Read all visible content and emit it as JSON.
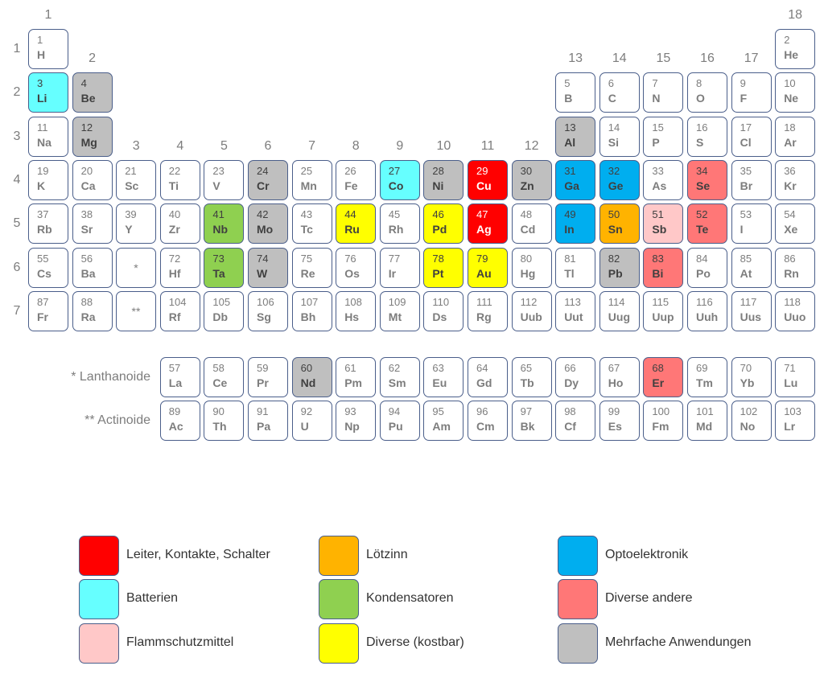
{
  "groups": [
    "1",
    "2",
    "3",
    "4",
    "5",
    "6",
    "7",
    "8",
    "9",
    "10",
    "11",
    "12",
    "13",
    "14",
    "15",
    "16",
    "17",
    "18"
  ],
  "periods": [
    "1",
    "2",
    "3",
    "4",
    "5",
    "6",
    "7"
  ],
  "placeholders": {
    "lanthanoid_mark": "*",
    "actinoid_mark": "**"
  },
  "series_labels": {
    "lanthanoids": "* Lanthanoide",
    "actinoids": "** Actinoide"
  },
  "colors": {
    "leiter": "#ff0000",
    "batterien": "#66ffff",
    "flamm": "#ffc8c8",
    "loetzinn": "#ffb300",
    "kondensatoren": "#8fd050",
    "kostbar": "#ffff00",
    "opto": "#00aeef",
    "diverse": "#ff7777",
    "mehrfach": "#bfbfbf"
  },
  "elements": [
    {
      "n": "1",
      "s": "H",
      "g": 1,
      "p": 1
    },
    {
      "n": "2",
      "s": "He",
      "g": 18,
      "p": 1
    },
    {
      "n": "3",
      "s": "Li",
      "g": 1,
      "p": 2,
      "c": "batterien"
    },
    {
      "n": "4",
      "s": "Be",
      "g": 2,
      "p": 2,
      "c": "mehrfach"
    },
    {
      "n": "5",
      "s": "B",
      "g": 13,
      "p": 2
    },
    {
      "n": "6",
      "s": "C",
      "g": 14,
      "p": 2
    },
    {
      "n": "7",
      "s": "N",
      "g": 15,
      "p": 2
    },
    {
      "n": "8",
      "s": "O",
      "g": 16,
      "p": 2
    },
    {
      "n": "9",
      "s": "F",
      "g": 17,
      "p": 2
    },
    {
      "n": "10",
      "s": "Ne",
      "g": 18,
      "p": 2
    },
    {
      "n": "11",
      "s": "Na",
      "g": 1,
      "p": 3
    },
    {
      "n": "12",
      "s": "Mg",
      "g": 2,
      "p": 3,
      "c": "mehrfach"
    },
    {
      "n": "13",
      "s": "Al",
      "g": 13,
      "p": 3,
      "c": "mehrfach"
    },
    {
      "n": "14",
      "s": "Si",
      "g": 14,
      "p": 3
    },
    {
      "n": "15",
      "s": "P",
      "g": 15,
      "p": 3
    },
    {
      "n": "16",
      "s": "S",
      "g": 16,
      "p": 3
    },
    {
      "n": "17",
      "s": "Cl",
      "g": 17,
      "p": 3
    },
    {
      "n": "18",
      "s": "Ar",
      "g": 18,
      "p": 3
    },
    {
      "n": "19",
      "s": "K",
      "g": 1,
      "p": 4
    },
    {
      "n": "20",
      "s": "Ca",
      "g": 2,
      "p": 4
    },
    {
      "n": "21",
      "s": "Sc",
      "g": 3,
      "p": 4
    },
    {
      "n": "22",
      "s": "Ti",
      "g": 4,
      "p": 4
    },
    {
      "n": "23",
      "s": "V",
      "g": 5,
      "p": 4
    },
    {
      "n": "24",
      "s": "Cr",
      "g": 6,
      "p": 4,
      "c": "mehrfach"
    },
    {
      "n": "25",
      "s": "Mn",
      "g": 7,
      "p": 4
    },
    {
      "n": "26",
      "s": "Fe",
      "g": 8,
      "p": 4
    },
    {
      "n": "27",
      "s": "Co",
      "g": 9,
      "p": 4,
      "c": "batterien"
    },
    {
      "n": "28",
      "s": "Ni",
      "g": 10,
      "p": 4,
      "c": "mehrfach"
    },
    {
      "n": "29",
      "s": "Cu",
      "g": 11,
      "p": 4,
      "c": "leiter"
    },
    {
      "n": "30",
      "s": "Zn",
      "g": 12,
      "p": 4,
      "c": "mehrfach"
    },
    {
      "n": "31",
      "s": "Ga",
      "g": 13,
      "p": 4,
      "c": "opto"
    },
    {
      "n": "32",
      "s": "Ge",
      "g": 14,
      "p": 4,
      "c": "opto"
    },
    {
      "n": "33",
      "s": "As",
      "g": 15,
      "p": 4
    },
    {
      "n": "34",
      "s": "Se",
      "g": 16,
      "p": 4,
      "c": "diverse"
    },
    {
      "n": "35",
      "s": "Br",
      "g": 17,
      "p": 4
    },
    {
      "n": "36",
      "s": "Kr",
      "g": 18,
      "p": 4
    },
    {
      "n": "37",
      "s": "Rb",
      "g": 1,
      "p": 5
    },
    {
      "n": "38",
      "s": "Sr",
      "g": 2,
      "p": 5
    },
    {
      "n": "39",
      "s": "Y",
      "g": 3,
      "p": 5
    },
    {
      "n": "40",
      "s": "Zr",
      "g": 4,
      "p": 5
    },
    {
      "n": "41",
      "s": "Nb",
      "g": 5,
      "p": 5,
      "c": "kondensatoren"
    },
    {
      "n": "42",
      "s": "Mo",
      "g": 6,
      "p": 5,
      "c": "mehrfach"
    },
    {
      "n": "43",
      "s": "Tc",
      "g": 7,
      "p": 5
    },
    {
      "n": "44",
      "s": "Ru",
      "g": 8,
      "p": 5,
      "c": "kostbar"
    },
    {
      "n": "45",
      "s": "Rh",
      "g": 9,
      "p": 5
    },
    {
      "n": "46",
      "s": "Pd",
      "g": 10,
      "p": 5,
      "c": "kostbar"
    },
    {
      "n": "47",
      "s": "Ag",
      "g": 11,
      "p": 5,
      "c": "leiter"
    },
    {
      "n": "48",
      "s": "Cd",
      "g": 12,
      "p": 5
    },
    {
      "n": "49",
      "s": "In",
      "g": 13,
      "p": 5,
      "c": "opto"
    },
    {
      "n": "50",
      "s": "Sn",
      "g": 14,
      "p": 5,
      "c": "loetzinn"
    },
    {
      "n": "51",
      "s": "Sb",
      "g": 15,
      "p": 5,
      "c": "flamm"
    },
    {
      "n": "52",
      "s": "Te",
      "g": 16,
      "p": 5,
      "c": "diverse"
    },
    {
      "n": "53",
      "s": "I",
      "g": 17,
      "p": 5
    },
    {
      "n": "54",
      "s": "Xe",
      "g": 18,
      "p": 5
    },
    {
      "n": "55",
      "s": "Cs",
      "g": 1,
      "p": 6
    },
    {
      "n": "56",
      "s": "Ba",
      "g": 2,
      "p": 6
    },
    {
      "n": "72",
      "s": "Hf",
      "g": 4,
      "p": 6
    },
    {
      "n": "73",
      "s": "Ta",
      "g": 5,
      "p": 6,
      "c": "kondensatoren"
    },
    {
      "n": "74",
      "s": "W",
      "g": 6,
      "p": 6,
      "c": "mehrfach"
    },
    {
      "n": "75",
      "s": "Re",
      "g": 7,
      "p": 6
    },
    {
      "n": "76",
      "s": "Os",
      "g": 8,
      "p": 6
    },
    {
      "n": "77",
      "s": "Ir",
      "g": 9,
      "p": 6
    },
    {
      "n": "78",
      "s": "Pt",
      "g": 10,
      "p": 6,
      "c": "kostbar"
    },
    {
      "n": "79",
      "s": "Au",
      "g": 11,
      "p": 6,
      "c": "kostbar"
    },
    {
      "n": "80",
      "s": "Hg",
      "g": 12,
      "p": 6
    },
    {
      "n": "81",
      "s": "Tl",
      "g": 13,
      "p": 6
    },
    {
      "n": "82",
      "s": "Pb",
      "g": 14,
      "p": 6,
      "c": "mehrfach"
    },
    {
      "n": "83",
      "s": "Bi",
      "g": 15,
      "p": 6,
      "c": "diverse"
    },
    {
      "n": "84",
      "s": "Po",
      "g": 16,
      "p": 6
    },
    {
      "n": "85",
      "s": "At",
      "g": 17,
      "p": 6
    },
    {
      "n": "86",
      "s": "Rn",
      "g": 18,
      "p": 6
    },
    {
      "n": "87",
      "s": "Fr",
      "g": 1,
      "p": 7
    },
    {
      "n": "88",
      "s": "Ra",
      "g": 2,
      "p": 7
    },
    {
      "n": "104",
      "s": "Rf",
      "g": 4,
      "p": 7
    },
    {
      "n": "105",
      "s": "Db",
      "g": 5,
      "p": 7
    },
    {
      "n": "106",
      "s": "Sg",
      "g": 6,
      "p": 7
    },
    {
      "n": "107",
      "s": "Bh",
      "g": 7,
      "p": 7
    },
    {
      "n": "108",
      "s": "Hs",
      "g": 8,
      "p": 7
    },
    {
      "n": "109",
      "s": "Mt",
      "g": 9,
      "p": 7
    },
    {
      "n": "110",
      "s": "Ds",
      "g": 10,
      "p": 7
    },
    {
      "n": "111",
      "s": "Rg",
      "g": 11,
      "p": 7
    },
    {
      "n": "112",
      "s": "Uub",
      "g": 12,
      "p": 7
    },
    {
      "n": "113",
      "s": "Uut",
      "g": 13,
      "p": 7
    },
    {
      "n": "114",
      "s": "Uug",
      "g": 14,
      "p": 7
    },
    {
      "n": "115",
      "s": "Uup",
      "g": 15,
      "p": 7
    },
    {
      "n": "116",
      "s": "Uuh",
      "g": 16,
      "p": 7
    },
    {
      "n": "117",
      "s": "Uus",
      "g": 17,
      "p": 7
    },
    {
      "n": "118",
      "s": "Uuo",
      "g": 18,
      "p": 7
    },
    {
      "n": "57",
      "s": "La",
      "g": 4,
      "p": 8
    },
    {
      "n": "58",
      "s": "Ce",
      "g": 5,
      "p": 8
    },
    {
      "n": "59",
      "s": "Pr",
      "g": 6,
      "p": 8
    },
    {
      "n": "60",
      "s": "Nd",
      "g": 7,
      "p": 8,
      "c": "mehrfach"
    },
    {
      "n": "61",
      "s": "Pm",
      "g": 8,
      "p": 8
    },
    {
      "n": "62",
      "s": "Sm",
      "g": 9,
      "p": 8
    },
    {
      "n": "63",
      "s": "Eu",
      "g": 10,
      "p": 8
    },
    {
      "n": "64",
      "s": "Gd",
      "g": 11,
      "p": 8
    },
    {
      "n": "65",
      "s": "Tb",
      "g": 12,
      "p": 8
    },
    {
      "n": "66",
      "s": "Dy",
      "g": 13,
      "p": 8
    },
    {
      "n": "67",
      "s": "Ho",
      "g": 14,
      "p": 8
    },
    {
      "n": "68",
      "s": "Er",
      "g": 15,
      "p": 8,
      "c": "diverse"
    },
    {
      "n": "69",
      "s": "Tm",
      "g": 16,
      "p": 8
    },
    {
      "n": "70",
      "s": "Yb",
      "g": 17,
      "p": 8
    },
    {
      "n": "71",
      "s": "Lu",
      "g": 18,
      "p": 8
    },
    {
      "n": "89",
      "s": "Ac",
      "g": 4,
      "p": 9
    },
    {
      "n": "90",
      "s": "Th",
      "g": 5,
      "p": 9
    },
    {
      "n": "91",
      "s": "Pa",
      "g": 6,
      "p": 9
    },
    {
      "n": "92",
      "s": "U",
      "g": 7,
      "p": 9
    },
    {
      "n": "93",
      "s": "Np",
      "g": 8,
      "p": 9
    },
    {
      "n": "94",
      "s": "Pu",
      "g": 9,
      "p": 9
    },
    {
      "n": "95",
      "s": "Am",
      "g": 10,
      "p": 9
    },
    {
      "n": "96",
      "s": "Cm",
      "g": 11,
      "p": 9
    },
    {
      "n": "97",
      "s": "Bk",
      "g": 12,
      "p": 9
    },
    {
      "n": "98",
      "s": "Cf",
      "g": 13,
      "p": 9
    },
    {
      "n": "99",
      "s": "Es",
      "g": 14,
      "p": 9
    },
    {
      "n": "100",
      "s": "Fm",
      "g": 15,
      "p": 9
    },
    {
      "n": "101",
      "s": "Md",
      "g": 16,
      "p": 9
    },
    {
      "n": "102",
      "s": "No",
      "g": 17,
      "p": 9
    },
    {
      "n": "103",
      "s": "Lr",
      "g": 18,
      "p": 9
    }
  ],
  "legend": [
    {
      "key": "leiter",
      "label": "Leiter, Kontakte, Schalter"
    },
    {
      "key": "batterien",
      "label": "Batterien"
    },
    {
      "key": "flamm",
      "label": "Flammschutzmittel"
    },
    {
      "key": "loetzinn",
      "label": "Lötzinn"
    },
    {
      "key": "kondensatoren",
      "label": "Kondensatoren"
    },
    {
      "key": "kostbar",
      "label": "Diverse (kostbar)"
    },
    {
      "key": "opto",
      "label": "Optoelektronik"
    },
    {
      "key": "diverse",
      "label": "Diverse andere"
    },
    {
      "key": "mehrfach",
      "label": "Mehrfache Anwendungen"
    }
  ]
}
